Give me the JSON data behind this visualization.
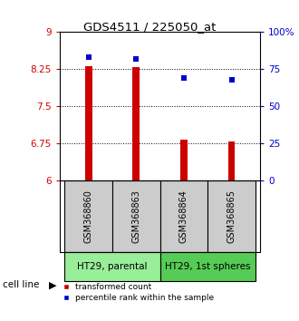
{
  "title": "GDS4511 / 225050_at",
  "samples": [
    "GSM368860",
    "GSM368863",
    "GSM368864",
    "GSM368865"
  ],
  "red_values": [
    8.32,
    8.3,
    6.82,
    6.79
  ],
  "blue_values": [
    83,
    82,
    69,
    68
  ],
  "ylim_left": [
    6,
    9
  ],
  "ylim_right": [
    0,
    100
  ],
  "yticks_left": [
    6,
    6.75,
    7.5,
    8.25,
    9
  ],
  "ytick_labels_left": [
    "6",
    "6.75",
    "7.5",
    "8.25",
    "9"
  ],
  "yticks_right": [
    0,
    25,
    50,
    75,
    100
  ],
  "ytick_labels_right": [
    "0",
    "25",
    "50",
    "75",
    "100%"
  ],
  "red_color": "#cc0000",
  "blue_color": "#0000cc",
  "bar_bottom": 6,
  "groups": [
    {
      "label": "HT29, parental",
      "samples": [
        0,
        1
      ],
      "color": "#99ee99"
    },
    {
      "label": "HT29, 1st spheres",
      "samples": [
        2,
        3
      ],
      "color": "#55cc55"
    }
  ],
  "cell_line_label": "cell line",
  "legend_red": "transformed count",
  "legend_blue": "percentile rank within the sample",
  "sample_box_color": "#cccccc",
  "plot_bg": "#ffffff",
  "bar_width": 0.15
}
